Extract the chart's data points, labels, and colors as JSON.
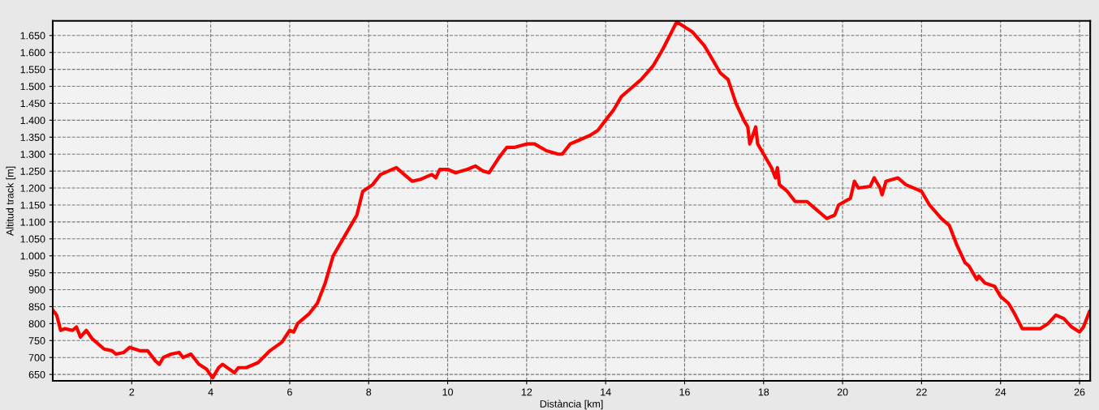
{
  "chart_data": {
    "type": "line",
    "xlabel": "Distància [km]",
    "ylabel": "Altitud track [m]",
    "xlim": [
      0,
      26.27
    ],
    "ylim": [
      631,
      1693
    ],
    "xticks": [
      2,
      4,
      6,
      8,
      10,
      12,
      14,
      16,
      18,
      20,
      22,
      24,
      26
    ],
    "yticks": [
      650,
      700,
      750,
      800,
      850,
      900,
      950,
      {
        "value": 1000,
        "label": "1.000"
      },
      {
        "value": 1050,
        "label": "1.050"
      },
      {
        "value": 1100,
        "label": "1.100"
      },
      {
        "value": 1150,
        "label": "1.150"
      },
      {
        "value": 1200,
        "label": "1.200"
      },
      {
        "value": 1250,
        "label": "1.250"
      },
      {
        "value": 1300,
        "label": "1.300"
      },
      {
        "value": 1350,
        "label": "1.350"
      },
      {
        "value": 1400,
        "label": "1.400"
      },
      {
        "value": 1450,
        "label": "1.450"
      },
      {
        "value": 1500,
        "label": "1.500"
      },
      {
        "value": 1550,
        "label": "1.550"
      },
      {
        "value": 1600,
        "label": "1.600"
      },
      {
        "value": 1650,
        "label": "1.650"
      }
    ],
    "grid": true,
    "marker": "none",
    "line_style": "solid",
    "x": [
      0,
      0.1,
      0.2,
      0.3,
      0.5,
      0.6,
      0.7,
      0.85,
      1.0,
      1.3,
      1.5,
      1.6,
      1.8,
      1.95,
      2.2,
      2.4,
      2.6,
      2.7,
      2.8,
      3.0,
      3.2,
      3.3,
      3.5,
      3.7,
      3.9,
      4.05,
      4.2,
      4.3,
      4.6,
      4.7,
      4.9,
      5.2,
      5.5,
      5.8,
      6.0,
      6.1,
      6.2,
      6.5,
      6.7,
      6.9,
      7.1,
      7.4,
      7.6,
      7.7,
      7.85,
      8.1,
      8.3,
      8.5,
      8.7,
      8.9,
      9.1,
      9.3,
      9.5,
      9.6,
      9.7,
      9.8,
      10.0,
      10.2,
      10.5,
      10.7,
      10.9,
      11.05,
      11.3,
      11.5,
      11.7,
      12.0,
      12.2,
      12.5,
      12.8,
      12.9,
      13.1,
      13.3,
      13.6,
      13.8,
      14.0,
      14.2,
      14.4,
      14.6,
      14.9,
      15.2,
      15.45,
      15.8,
      16.2,
      16.5,
      16.7,
      16.9,
      17.1,
      17.3,
      17.5,
      17.6,
      17.65,
      17.8,
      17.85,
      17.95,
      18.2,
      18.3,
      18.35,
      18.4,
      18.6,
      18.8,
      19.1,
      19.3,
      19.6,
      19.8,
      19.9,
      20.2,
      20.3,
      20.4,
      20.7,
      20.8,
      20.95,
      21.0,
      21.1,
      21.4,
      21.6,
      21.9,
      22.0,
      22.2,
      22.5,
      22.7,
      22.9,
      23.1,
      23.2,
      23.4,
      23.45,
      23.6,
      23.85,
      24.0,
      24.2,
      24.35,
      24.55,
      24.8,
      25.0,
      25.2,
      25.4,
      25.6,
      25.8,
      26.0,
      26.1,
      26.25
    ],
    "series": [
      {
        "color": "#ff0000",
        "values": [
          840,
          825,
          780,
          785,
          780,
          790,
          760,
          780,
          755,
          725,
          720,
          710,
          715,
          730,
          720,
          720,
          690,
          680,
          700,
          710,
          715,
          700,
          710,
          680,
          665,
          640,
          670,
          680,
          655,
          670,
          670,
          685,
          720,
          745,
          780,
          775,
          800,
          830,
          860,
          920,
          1000,
          1060,
          1100,
          1120,
          1190,
          1210,
          1240,
          1250,
          1260,
          1240,
          1220,
          1225,
          1235,
          1240,
          1230,
          1255,
          1255,
          1245,
          1255,
          1265,
          1250,
          1245,
          1290,
          1320,
          1320,
          1330,
          1330,
          1310,
          1300,
          1300,
          1330,
          1340,
          1355,
          1370,
          1400,
          1430,
          1470,
          1490,
          1520,
          1560,
          1610,
          1690,
          1660,
          1620,
          1580,
          1540,
          1520,
          1450,
          1400,
          1380,
          1330,
          1380,
          1330,
          1310,
          1260,
          1230,
          1260,
          1210,
          1190,
          1160,
          1160,
          1140,
          1110,
          1120,
          1150,
          1170,
          1220,
          1200,
          1205,
          1230,
          1200,
          1180,
          1220,
          1230,
          1210,
          1195,
          1190,
          1150,
          1110,
          1090,
          1030,
          980,
          970,
          930,
          940,
          920,
          910,
          880,
          860,
          830,
          785,
          785,
          785,
          800,
          825,
          815,
          790,
          775,
          790,
          835
        ]
      }
    ]
  }
}
